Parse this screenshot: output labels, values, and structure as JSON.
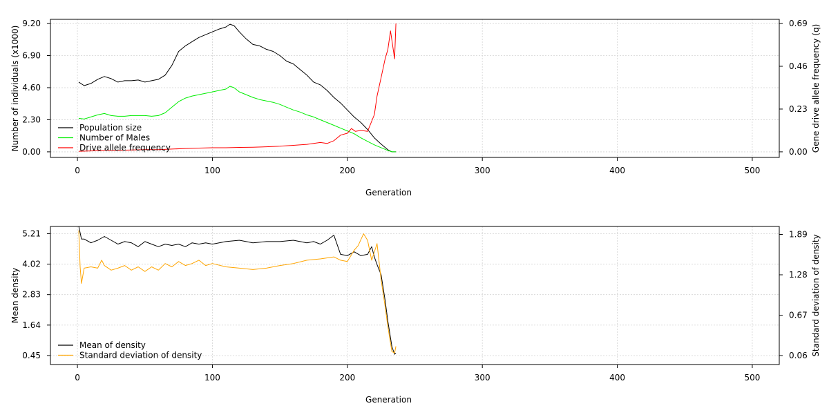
{
  "chart_data": [
    {
      "type": "line",
      "xlabel": "Generation",
      "ylabel": "Number of individuals (x1000)",
      "y2label": "Gene drive allele frequency (q)",
      "xlim": [
        -20,
        520
      ],
      "ylim": [
        -0.4,
        9.5
      ],
      "y2lim": [
        -0.03,
        0.7124
      ],
      "x_ticks": [
        0,
        100,
        200,
        300,
        400,
        500
      ],
      "y_ticks": [
        0.0,
        2.3,
        4.6,
        6.9,
        9.2
      ],
      "y_tick_labels": [
        "0.00",
        "2.30",
        "4.60",
        "6.90",
        "9.20"
      ],
      "y2_ticks": [
        0.0,
        0.23,
        0.46,
        0.69
      ],
      "y2_tick_labels": [
        "0.00",
        "0.23",
        "0.46",
        "0.69"
      ],
      "grid": true,
      "legend_position": "bottom-left",
      "series": [
        {
          "name": "Population size",
          "color": "#000000",
          "axis": "left",
          "x": [
            1,
            5,
            10,
            15,
            20,
            25,
            30,
            35,
            40,
            45,
            50,
            55,
            60,
            65,
            70,
            75,
            80,
            85,
            90,
            95,
            100,
            105,
            110,
            113,
            116,
            120,
            125,
            130,
            135,
            140,
            145,
            150,
            155,
            160,
            165,
            170,
            175,
            180,
            185,
            190,
            195,
            200,
            205,
            210,
            215,
            220,
            225,
            230,
            233,
            236
          ],
          "y": [
            5.0,
            4.75,
            4.9,
            5.2,
            5.4,
            5.25,
            5.0,
            5.1,
            5.1,
            5.15,
            5.0,
            5.1,
            5.2,
            5.5,
            6.2,
            7.2,
            7.6,
            7.9,
            8.2,
            8.4,
            8.6,
            8.8,
            8.95,
            9.15,
            9.05,
            8.6,
            8.1,
            7.7,
            7.6,
            7.35,
            7.2,
            6.9,
            6.5,
            6.3,
            5.9,
            5.5,
            5.0,
            4.8,
            4.4,
            3.9,
            3.5,
            3.0,
            2.5,
            2.1,
            1.6,
            1.0,
            0.55,
            0.15,
            0.0,
            0.0
          ]
        },
        {
          "name": "Number of Males",
          "color": "#00ee00",
          "axis": "left",
          "x": [
            1,
            5,
            10,
            15,
            20,
            25,
            30,
            35,
            40,
            45,
            50,
            55,
            60,
            65,
            70,
            75,
            80,
            85,
            90,
            95,
            100,
            105,
            110,
            113,
            116,
            120,
            125,
            130,
            135,
            140,
            145,
            150,
            155,
            160,
            165,
            170,
            175,
            180,
            185,
            190,
            195,
            200,
            205,
            210,
            215,
            220,
            225,
            230,
            233,
            236
          ],
          "y": [
            2.4,
            2.35,
            2.5,
            2.65,
            2.75,
            2.6,
            2.55,
            2.55,
            2.6,
            2.6,
            2.6,
            2.55,
            2.6,
            2.8,
            3.2,
            3.6,
            3.85,
            4.0,
            4.1,
            4.2,
            4.3,
            4.4,
            4.5,
            4.7,
            4.6,
            4.3,
            4.1,
            3.9,
            3.75,
            3.65,
            3.55,
            3.4,
            3.2,
            3.0,
            2.85,
            2.65,
            2.5,
            2.3,
            2.1,
            1.9,
            1.7,
            1.5,
            1.3,
            1.0,
            0.75,
            0.5,
            0.3,
            0.1,
            0.0,
            0.0
          ]
        },
        {
          "name": "Drive allele frequency",
          "color": "#ff0000",
          "axis": "right",
          "x": [
            1,
            10,
            20,
            30,
            40,
            50,
            60,
            70,
            80,
            90,
            100,
            110,
            120,
            130,
            140,
            150,
            160,
            170,
            180,
            185,
            190,
            195,
            200,
            203,
            206,
            210,
            215,
            220,
            222,
            225,
            228,
            230,
            232,
            235,
            236
          ],
          "y": [
            0.003,
            0.005,
            0.008,
            0.008,
            0.01,
            0.012,
            0.012,
            0.015,
            0.018,
            0.02,
            0.022,
            0.022,
            0.024,
            0.025,
            0.027,
            0.03,
            0.035,
            0.04,
            0.05,
            0.045,
            0.06,
            0.09,
            0.1,
            0.125,
            0.11,
            0.115,
            0.11,
            0.2,
            0.3,
            0.4,
            0.5,
            0.55,
            0.65,
            0.5,
            0.69
          ]
        }
      ]
    },
    {
      "type": "line",
      "xlabel": "Generation",
      "ylabel": "Mean density",
      "y2label": "Standard deviation of density",
      "xlim": [
        -20,
        520
      ],
      "ylim": [
        0.1,
        5.49
      ],
      "y2lim": [
        -0.075,
        2.01
      ],
      "x_ticks": [
        0,
        100,
        200,
        300,
        400,
        500
      ],
      "y_ticks": [
        0.45,
        1.64,
        2.83,
        4.02,
        5.21
      ],
      "y_tick_labels": [
        "0.45",
        "1.64",
        "2.83",
        "4.02",
        "5.21"
      ],
      "y2_ticks": [
        0.06,
        0.67,
        1.28,
        1.89
      ],
      "y2_tick_labels": [
        "0.06",
        "0.67",
        "1.28",
        "1.89"
      ],
      "grid": true,
      "legend_position": "bottom-left",
      "series": [
        {
          "name": "Mean of density",
          "color": "#000000",
          "axis": "left",
          "x": [
            1,
            3,
            5,
            10,
            15,
            20,
            25,
            30,
            35,
            40,
            45,
            50,
            55,
            60,
            65,
            70,
            75,
            80,
            85,
            90,
            95,
            100,
            110,
            120,
            130,
            140,
            150,
            160,
            170,
            175,
            180,
            185,
            190,
            195,
            200,
            205,
            210,
            215,
            218,
            220,
            222,
            225,
            228,
            230,
            233,
            235,
            236
          ],
          "y": [
            5.5,
            5.0,
            5.0,
            4.85,
            4.95,
            5.1,
            4.95,
            4.8,
            4.9,
            4.85,
            4.7,
            4.9,
            4.8,
            4.7,
            4.8,
            4.75,
            4.8,
            4.7,
            4.85,
            4.8,
            4.85,
            4.8,
            4.9,
            4.95,
            4.85,
            4.9,
            4.9,
            4.95,
            4.85,
            4.9,
            4.8,
            4.95,
            5.15,
            4.4,
            4.35,
            4.5,
            4.35,
            4.4,
            4.7,
            4.3,
            4.0,
            3.6,
            2.6,
            1.8,
            0.8,
            0.5,
            0.55
          ]
        },
        {
          "name": "Standard deviation of density",
          "color": "#ffa500",
          "axis": "right",
          "x": [
            1,
            2,
            3,
            5,
            10,
            15,
            18,
            20,
            25,
            30,
            35,
            40,
            45,
            50,
            55,
            60,
            65,
            70,
            75,
            80,
            85,
            90,
            95,
            100,
            110,
            120,
            130,
            140,
            150,
            160,
            170,
            180,
            190,
            195,
            200,
            205,
            208,
            212,
            215,
            218,
            222,
            225,
            228,
            230,
            233,
            235,
            236
          ],
          "y": [
            1.95,
            1.4,
            1.15,
            1.38,
            1.4,
            1.38,
            1.5,
            1.42,
            1.35,
            1.38,
            1.42,
            1.35,
            1.4,
            1.33,
            1.4,
            1.35,
            1.45,
            1.4,
            1.48,
            1.42,
            1.45,
            1.5,
            1.42,
            1.45,
            1.4,
            1.38,
            1.36,
            1.38,
            1.42,
            1.45,
            1.5,
            1.52,
            1.55,
            1.5,
            1.48,
            1.65,
            1.72,
            1.9,
            1.8,
            1.5,
            1.75,
            1.2,
            0.8,
            0.5,
            0.12,
            0.1,
            0.2
          ]
        }
      ]
    }
  ]
}
